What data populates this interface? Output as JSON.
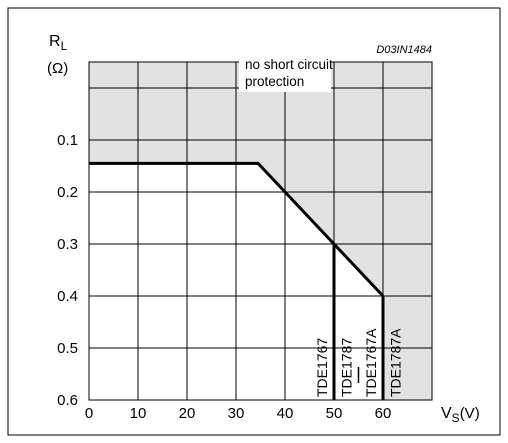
{
  "chart_data": {
    "type": "area",
    "figure_code": "D03IN1484",
    "y_axis": {
      "symbol": "R",
      "subscript": "L",
      "unit": "(Ω)",
      "ticks": [
        "0.1",
        "0.2",
        "0.3",
        "0.4",
        "0.5",
        "0.6"
      ],
      "tick_values": [
        0.1,
        0.2,
        0.3,
        0.4,
        0.5,
        0.6
      ],
      "range": [
        -0.05,
        0.6
      ],
      "inverted": true
    },
    "x_axis": {
      "symbol": "V",
      "subscript": "S",
      "unit": "(V)",
      "ticks": [
        "0",
        "10",
        "20",
        "30",
        "40",
        "50",
        "60"
      ],
      "tick_values": [
        0,
        10,
        20,
        30,
        40,
        50,
        60
      ],
      "range": [
        0,
        70
      ]
    },
    "grid": true,
    "boundary_line": {
      "x": [
        0,
        34.5,
        50,
        60
      ],
      "y": [
        0.145,
        0.145,
        0.3,
        0.4
      ]
    },
    "vertical_limits": [
      {
        "x": 50,
        "y_from": 0.3,
        "y_to": 0.6
      },
      {
        "x": 60,
        "y_from": 0.4,
        "y_to": 0.6
      }
    ],
    "shaded_region": {
      "label_lines": [
        "no short circuit",
        "protection"
      ],
      "color": "#e2e2e2"
    },
    "device_labels": [
      {
        "text": "TDE1767",
        "x": 47.5
      },
      {
        "text": "TDE1787",
        "x": 52.5
      },
      {
        "text": "TDE1767A",
        "x": 57.5
      },
      {
        "text": "TDE1787A",
        "x": 62.5
      }
    ],
    "dash_marks": [
      55
    ]
  }
}
